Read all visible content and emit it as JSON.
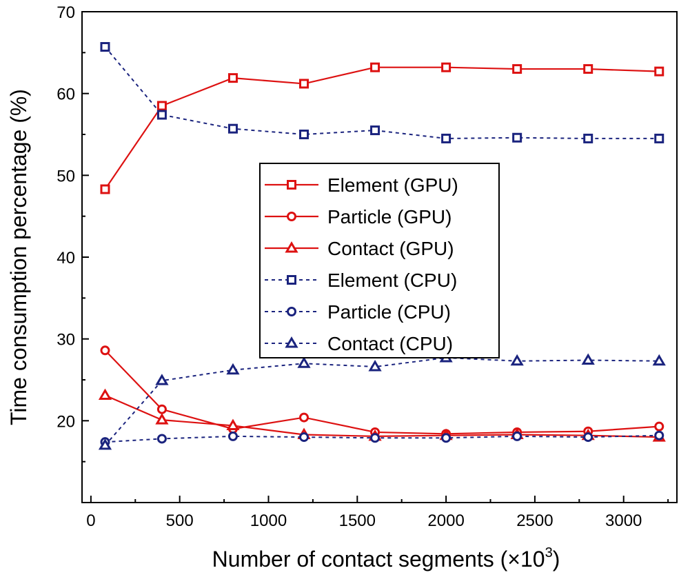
{
  "chart_data": {
    "type": "line",
    "title": "",
    "xlabel_main": "Number of contact segments (×10",
    "xlabel_sup": "3",
    "xlabel_close": ")",
    "ylabel": "Time consumption percentage (%)",
    "xlim": [
      -50,
      3300
    ],
    "ylim": [
      10,
      70
    ],
    "xticks": [
      0,
      500,
      1000,
      1500,
      2000,
      2500,
      3000
    ],
    "xticks_minor": [
      250,
      750,
      1250,
      1750,
      2250,
      2750,
      3250
    ],
    "yticks": [
      20,
      30,
      40,
      50,
      60,
      70
    ],
    "x": [
      80,
      400,
      800,
      1200,
      1600,
      2000,
      2400,
      2800,
      3200
    ],
    "series": [
      {
        "name": "Element (GPU)",
        "color": "#dd1111",
        "line": "solid",
        "marker": "square",
        "values": [
          48.3,
          58.5,
          61.9,
          61.2,
          63.2,
          63.2,
          63.0,
          63.0,
          62.7
        ]
      },
      {
        "name": "Particle (GPU)",
        "color": "#dd1111",
        "line": "solid",
        "marker": "circle",
        "values": [
          28.6,
          21.4,
          19.0,
          20.4,
          18.6,
          18.4,
          18.6,
          18.7,
          19.3
        ]
      },
      {
        "name": "Contact (GPU)",
        "color": "#dd1111",
        "line": "solid",
        "marker": "triangle",
        "values": [
          23.1,
          20.1,
          19.4,
          18.3,
          18.1,
          18.2,
          18.3,
          18.2,
          18.0
        ]
      },
      {
        "name": "Element (CPU)",
        "color": "#1a237e",
        "line": "dashed",
        "marker": "square",
        "values": [
          65.7,
          57.4,
          55.7,
          55.0,
          55.5,
          54.5,
          54.6,
          54.5,
          54.5
        ]
      },
      {
        "name": "Particle (CPU)",
        "color": "#1a237e",
        "line": "dashed",
        "marker": "circle",
        "values": [
          17.4,
          17.8,
          18.1,
          18.0,
          17.9,
          17.9,
          18.1,
          18.0,
          18.2
        ]
      },
      {
        "name": "Contact (CPU)",
        "color": "#1a237e",
        "line": "dashed",
        "marker": "triangle",
        "values": [
          17.0,
          24.9,
          26.2,
          27.0,
          26.6,
          27.7,
          27.3,
          27.4,
          27.3
        ]
      }
    ],
    "legend_position": "center-right"
  }
}
